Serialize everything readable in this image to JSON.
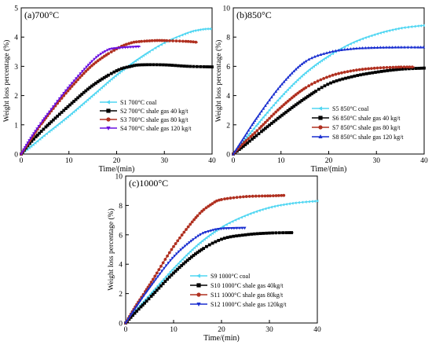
{
  "chart_data": [
    {
      "type": "line",
      "panel_label": "(a)700°C",
      "xlabel": "Time/(min)",
      "ylabel": "Weight loss percentage (%)",
      "xlim": [
        0,
        40
      ],
      "ylim": [
        0,
        5
      ],
      "xticks": [
        "0",
        "10",
        "20",
        "30",
        "40"
      ],
      "yticks": [
        "0",
        "1",
        "2",
        "3",
        "4",
        "5"
      ],
      "legend_position": "bottom-right",
      "series": [
        {
          "name": "S1  700°C coal",
          "color": "#4fd6f2",
          "marker": "triangle-left",
          "x": [
            0,
            2,
            5,
            10,
            15,
            20,
            25,
            30,
            35,
            37.5,
            39,
            40
          ],
          "y": [
            0,
            0.25,
            0.65,
            1.3,
            2.0,
            2.7,
            3.3,
            3.8,
            4.15,
            4.25,
            4.28,
            4.28
          ]
        },
        {
          "name": "S2  700°C shale gas 40 kg/t",
          "color": "#000000",
          "marker": "square",
          "x": [
            0,
            2,
            5,
            10,
            15,
            20,
            23,
            25,
            30,
            35,
            40
          ],
          "y": [
            0,
            0.4,
            0.9,
            1.65,
            2.35,
            2.85,
            3.0,
            3.05,
            3.05,
            3.0,
            2.98
          ]
        },
        {
          "name": "S3  700°C shale gas 80 kg/t",
          "color": "#b03020",
          "marker": "circle",
          "x": [
            0,
            2,
            5,
            10,
            15,
            20,
            23,
            25,
            28,
            30,
            35,
            37
          ],
          "y": [
            0,
            0.5,
            1.2,
            2.2,
            3.05,
            3.6,
            3.8,
            3.85,
            3.88,
            3.88,
            3.85,
            3.82
          ]
        },
        {
          "name": "S4  700°C shale gas 120 kg/t",
          "color": "#6a10e0",
          "marker": "triangle-down",
          "x": [
            0,
            2,
            5,
            10,
            15,
            18,
            20,
            22,
            25
          ],
          "y": [
            0,
            0.55,
            1.25,
            2.3,
            3.2,
            3.55,
            3.62,
            3.65,
            3.68
          ]
        }
      ]
    },
    {
      "type": "line",
      "panel_label": "(b)850°C",
      "xlabel": "Time/(min)",
      "ylabel": "Weight loss percentage (%)",
      "xlim": [
        0,
        40
      ],
      "ylim": [
        0,
        10
      ],
      "xticks": [
        "0",
        "10",
        "20",
        "30",
        "40"
      ],
      "yticks": [
        "0",
        "2",
        "4",
        "6",
        "8",
        "10"
      ],
      "legend_position": "bottom-right",
      "series": [
        {
          "name": "S5  850°C coal",
          "color": "#4fd6f2",
          "marker": "triangle-left",
          "x": [
            0,
            2,
            5,
            10,
            15,
            20,
            25,
            30,
            35,
            40
          ],
          "y": [
            0,
            0.8,
            2.0,
            3.9,
            5.5,
            6.7,
            7.6,
            8.2,
            8.6,
            8.8
          ]
        },
        {
          "name": "S6  850°C shale gas 40 kg/t",
          "color": "#000000",
          "marker": "square",
          "x": [
            0,
            2,
            5,
            10,
            15,
            20,
            25,
            30,
            35,
            40
          ],
          "y": [
            0,
            0.5,
            1.3,
            2.6,
            3.8,
            4.8,
            5.3,
            5.6,
            5.8,
            5.88
          ]
        },
        {
          "name": "S7  850°C shale gas 80 kg/t",
          "color": "#b03020",
          "marker": "circle",
          "x": [
            0,
            2,
            5,
            10,
            15,
            20,
            25,
            30,
            35,
            38
          ],
          "y": [
            0,
            0.7,
            1.6,
            3.2,
            4.5,
            5.3,
            5.7,
            5.88,
            5.95,
            5.95
          ]
        },
        {
          "name": "S8  850°C shale gas 120 kg/t",
          "color": "#1a2fd0",
          "marker": "triangle-up",
          "x": [
            0,
            2,
            5,
            10,
            15,
            20,
            25,
            30,
            35,
            40
          ],
          "y": [
            0,
            1.0,
            2.5,
            4.7,
            6.3,
            6.95,
            7.2,
            7.28,
            7.3,
            7.3
          ]
        }
      ]
    },
    {
      "type": "line",
      "panel_label": "(c)1000°C",
      "xlabel": "Time/(min)",
      "ylabel": "Weight loss percentage (%)",
      "xlim": [
        0,
        40
      ],
      "ylim": [
        0,
        10
      ],
      "xticks": [
        "0",
        "10",
        "20",
        "30",
        "40"
      ],
      "yticks": [
        "0",
        "2",
        "4",
        "6",
        "8",
        "10"
      ],
      "legend_position": "bottom-right",
      "series": [
        {
          "name": "S9  1000°C coal",
          "color": "#4fd6f2",
          "marker": "triangle-left",
          "x": [
            0,
            2,
            5,
            10,
            15,
            20,
            25,
            30,
            35,
            40
          ],
          "y": [
            0,
            0.8,
            1.9,
            3.7,
            5.3,
            6.5,
            7.3,
            7.85,
            8.15,
            8.3
          ]
        },
        {
          "name": "S10  1000°C shale gas 40kg/t",
          "color": "#000000",
          "marker": "square",
          "x": [
            0,
            2,
            5,
            10,
            15,
            20,
            25,
            30,
            35
          ],
          "y": [
            0,
            0.7,
            1.7,
            3.4,
            4.8,
            5.7,
            6.0,
            6.12,
            6.15
          ]
        },
        {
          "name": "S11  1000°C shale gas 80kg/t",
          "color": "#b03020",
          "marker": "circle",
          "x": [
            0,
            2,
            5,
            10,
            15,
            18,
            20,
            25,
            30,
            33
          ],
          "y": [
            0,
            1.1,
            2.6,
            5.2,
            7.3,
            8.1,
            8.4,
            8.6,
            8.65,
            8.68
          ]
        },
        {
          "name": "S12  1000°C shale gas 120kg/t",
          "color": "#1a2fd0",
          "marker": "triangle-down",
          "x": [
            0,
            2,
            5,
            10,
            15,
            18,
            20,
            22,
            25
          ],
          "y": [
            0,
            1.0,
            2.4,
            4.5,
            5.9,
            6.3,
            6.42,
            6.45,
            6.47
          ]
        }
      ]
    }
  ]
}
